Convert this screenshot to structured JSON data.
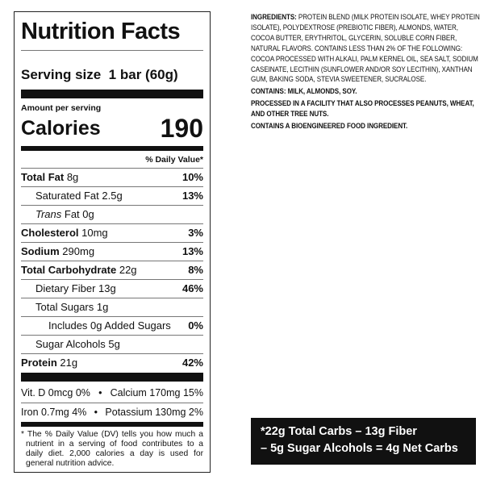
{
  "label": {
    "title": "Nutrition Facts",
    "serving_label": "Serving size",
    "serving_value": "1 bar (60g)",
    "amount_per_serving": "Amount per serving",
    "calories_label": "Calories",
    "calories_value": "190",
    "dv_header": "% Daily Value*",
    "rows": [
      {
        "name": "Total Fat",
        "amount": "8g",
        "dv": "10%",
        "bold": true,
        "indent": 0
      },
      {
        "name": "Saturated Fat",
        "amount": "2.5g",
        "dv": "13%",
        "bold": false,
        "indent": 1
      },
      {
        "name": "Trans",
        "name_suffix": " Fat",
        "amount": "0g",
        "dv": "",
        "bold": false,
        "indent": 1
      },
      {
        "name": "Cholesterol",
        "amount": "10mg",
        "dv": "3%",
        "bold": true,
        "indent": 0
      },
      {
        "name": "Sodium",
        "amount": "290mg",
        "dv": "13%",
        "bold": true,
        "indent": 0
      },
      {
        "name": "Total Carbohydrate",
        "amount": "22g",
        "dv": "8%",
        "bold": true,
        "indent": 0
      },
      {
        "name": "Dietary Fiber",
        "amount": "13g",
        "dv": "46%",
        "bold": false,
        "indent": 1
      },
      {
        "name": "Total Sugars",
        "amount": "1g",
        "dv": "",
        "bold": false,
        "indent": 1
      },
      {
        "name": "Includes 0g Added Sugars",
        "amount": "",
        "dv": "0%",
        "bold": false,
        "indent": 2
      },
      {
        "name": "Sugar Alcohols",
        "amount": "5g",
        "dv": "",
        "bold": false,
        "indent": 1
      },
      {
        "name": "Protein",
        "amount": "21g",
        "dv": "42%",
        "bold": true,
        "indent": 0
      }
    ],
    "vitamins_row1_left": "Vit. D 0mcg 0%",
    "vitamins_row1_right": "Calcium 170mg 15%",
    "vitamins_row2_left": "Iron 0.7mg 4%",
    "vitamins_row2_right": "Potassium 130mg 2%",
    "bullet": "•",
    "footnote": "* The % Daily Value (DV) tells you how much a nutrient in a serving of food contributes to a daily diet. 2,000 calories a day is used for general nutrition advice."
  },
  "ingredients": {
    "label": "INGREDIENTS:",
    "text": " PROTEIN BLEND (MILK PROTEIN ISOLATE, WHEY PROTEIN ISOLATE), POLYDEXTROSE (PREBIOTIC FIBER), ALMONDS, WATER, COCOA BUTTER, ERYTHRITOL, GLYCERIN, SOLUBLE CORN FIBER, NATURAL FLAVORS. CONTAINS LESS THAN 2% OF THE FOLLOWING: COCOA PROCESSED WITH ALKALI, PALM KERNEL OIL, SEA SALT, SODIUM CASEINATE, LECITHIN (SUNFLOWER AND/OR SOY LECITHIN), XANTHAN GUM, BAKING SODA, STEVIA SWEETENER, SUCRALOSE.",
    "contains": "CONTAINS: MILK, ALMONDS, SOY.",
    "facility": "PROCESSED IN A FACILITY THAT ALSO PROCESSES PEANUTS, WHEAT, AND OTHER TREE NUTS.",
    "bioengineered": "CONTAINS A BIOENGINEERED FOOD INGREDIENT."
  },
  "net_carbs": {
    "line1": "*22g Total Carbs – 13g Fiber",
    "line2": "– 5g Sugar Alcohols = 4g Net Carbs"
  }
}
